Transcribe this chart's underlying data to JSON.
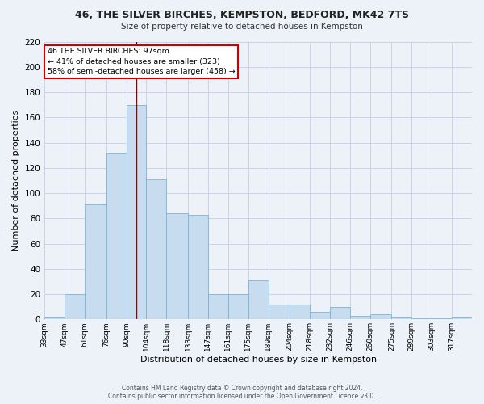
{
  "title1": "46, THE SILVER BIRCHES, KEMPSTON, BEDFORD, MK42 7TS",
  "title2": "Size of property relative to detached houses in Kempston",
  "xlabel": "Distribution of detached houses by size in Kempston",
  "ylabel": "Number of detached properties",
  "footnote1": "Contains HM Land Registry data © Crown copyright and database right 2024.",
  "footnote2": "Contains public sector information licensed under the Open Government Licence v3.0.",
  "bar_labels": [
    "33sqm",
    "47sqm",
    "61sqm",
    "76sqm",
    "90sqm",
    "104sqm",
    "118sqm",
    "133sqm",
    "147sqm",
    "161sqm",
    "175sqm",
    "189sqm",
    "204sqm",
    "218sqm",
    "232sqm",
    "246sqm",
    "260sqm",
    "275sqm",
    "289sqm",
    "303sqm",
    "317sqm"
  ],
  "bar_values": [
    2,
    20,
    91,
    132,
    170,
    111,
    84,
    83,
    20,
    20,
    31,
    12,
    12,
    6,
    10,
    3,
    4,
    2,
    1,
    1,
    2
  ],
  "bar_color": "#c8dcf0",
  "bar_edge_color": "#7ab4d8",
  "grid_color": "#c8d4e8",
  "background_color": "#edf1f8",
  "red_line_x": 97,
  "bin_edges": [
    33,
    47,
    61,
    76,
    90,
    104,
    118,
    133,
    147,
    161,
    175,
    189,
    204,
    218,
    232,
    246,
    260,
    275,
    289,
    303,
    317,
    331
  ],
  "annotation_text": "46 THE SILVER BIRCHES: 97sqm\n← 41% of detached houses are smaller (323)\n58% of semi-detached houses are larger (458) →",
  "annotation_box_color": "#ffffff",
  "annotation_border_color": "#cc0000",
  "ylim": [
    0,
    220
  ],
  "yticks": [
    0,
    20,
    40,
    60,
    80,
    100,
    120,
    140,
    160,
    180,
    200,
    220
  ]
}
